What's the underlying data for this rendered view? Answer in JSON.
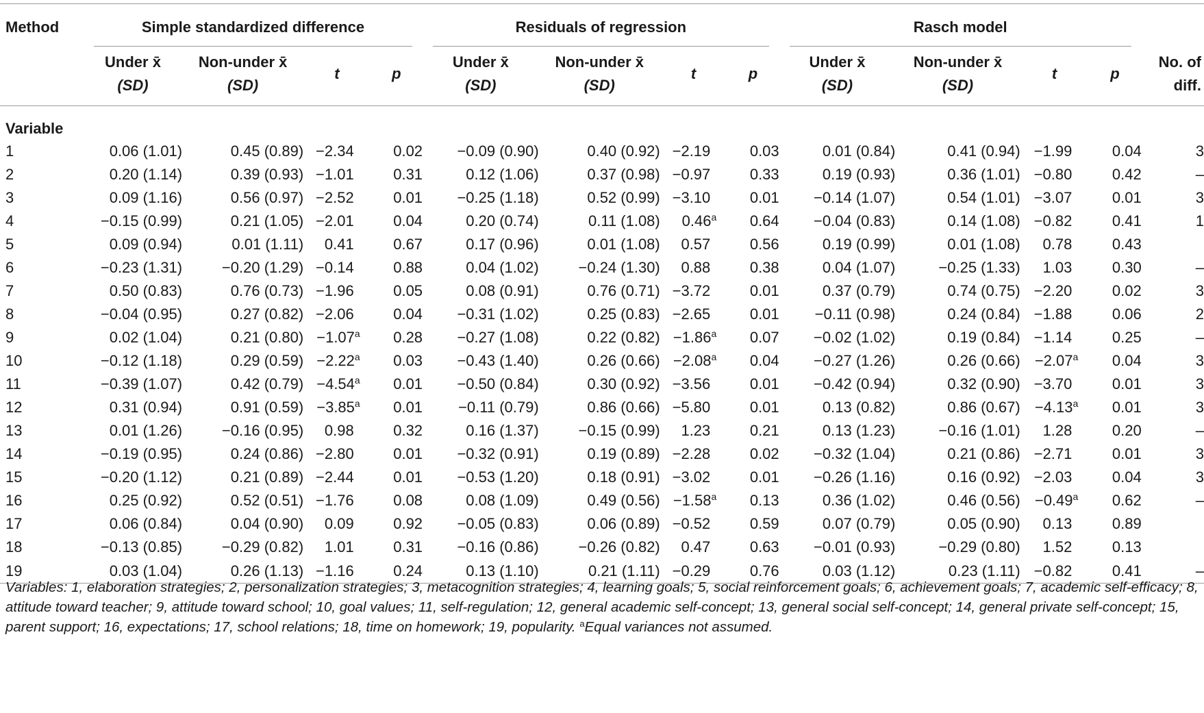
{
  "headers": {
    "method": "Method",
    "groups": [
      "Simple standardized difference",
      "Residuals of regression",
      "Rasch model"
    ],
    "under_top": "Under x̄",
    "under_sub": "(SD)",
    "nonunder_top": "Non-under x̄",
    "nonunder_sub": "(SD)",
    "t": "t",
    "p": "p",
    "ndiff_top": "No. of",
    "ndiff_sub": "diff.",
    "variable": "Variable"
  },
  "rows": [
    {
      "v": "1",
      "s_u": "0.06 (1.01)",
      "s_n": "0.45 (0.89)",
      "s_t": "−2.34",
      "s_ta": "",
      "s_p": "0.02",
      "r_u": "−0.09 (0.90)",
      "r_n": "0.40 (0.92)",
      "r_t": "−2.19",
      "r_ta": "",
      "r_p": "0.03",
      "m_u": "0.01 (0.84)",
      "m_n": "0.41 (0.94)",
      "m_t": "−1.99",
      "m_ta": "",
      "m_p": "0.04",
      "d": "3"
    },
    {
      "v": "2",
      "s_u": "0.20 (1.14)",
      "s_n": "0.39 (0.93)",
      "s_t": "−1.01",
      "s_ta": "",
      "s_p": "0.31",
      "r_u": "0.12 (1.06)",
      "r_n": "0.37 (0.98)",
      "r_t": "−0.97",
      "r_ta": "",
      "r_p": "0.33",
      "m_u": "0.19 (0.93)",
      "m_n": "0.36 (1.01)",
      "m_t": "−0.80",
      "m_ta": "",
      "m_p": "0.42",
      "d": "–"
    },
    {
      "v": "3",
      "s_u": "0.09 (1.16)",
      "s_n": "0.56 (0.97)",
      "s_t": "−2.52",
      "s_ta": "",
      "s_p": "0.01",
      "r_u": "−0.25 (1.18)",
      "r_n": "0.52 (0.99)",
      "r_t": "−3.10",
      "r_ta": "",
      "r_p": "0.01",
      "m_u": "−0.14 (1.07)",
      "m_n": "0.54 (1.01)",
      "m_t": "−3.07",
      "m_ta": "",
      "m_p": "0.01",
      "d": "3"
    },
    {
      "v": "4",
      "s_u": "−0.15 (0.99)",
      "s_n": "0.21 (1.05)",
      "s_t": "−2.01",
      "s_ta": "",
      "s_p": "0.04",
      "r_u": "0.20 (0.74)",
      "r_n": "0.11 (1.08)",
      "r_t": "0.46",
      "r_ta": "a",
      "r_p": "0.64",
      "m_u": "−0.04 (0.83)",
      "m_n": "0.14 (1.08)",
      "m_t": "−0.82",
      "m_ta": "",
      "m_p": "0.41",
      "d": "1"
    },
    {
      "v": "5",
      "s_u": "0.09 (0.94)",
      "s_n": "0.01 (1.11)",
      "s_t": "0.41",
      "s_ta": "",
      "s_p": "0.67",
      "r_u": "0.17 (0.96)",
      "r_n": "0.01 (1.08)",
      "r_t": "0.57",
      "r_ta": "",
      "r_p": "0.56",
      "m_u": "0.19 (0.99)",
      "m_n": "0.01 (1.08)",
      "m_t": "0.78",
      "m_ta": "",
      "m_p": "0.43",
      "d": ""
    },
    {
      "v": "6",
      "s_u": "−0.23 (1.31)",
      "s_n": "−0.20 (1.29)",
      "s_t": "−0.14",
      "s_ta": "",
      "s_p": "0.88",
      "r_u": "0.04 (1.02)",
      "r_n": "−0.24 (1.30)",
      "r_t": "0.88",
      "r_ta": "",
      "r_p": "0.38",
      "m_u": "0.04 (1.07)",
      "m_n": "−0.25 (1.33)",
      "m_t": "1.03",
      "m_ta": "",
      "m_p": "0.30",
      "d": "–"
    },
    {
      "v": "7",
      "s_u": "0.50 (0.83)",
      "s_n": "0.76 (0.73)",
      "s_t": "−1.96",
      "s_ta": "",
      "s_p": "0.05",
      "r_u": "0.08 (0.91)",
      "r_n": "0.76 (0.71)",
      "r_t": "−3.72",
      "r_ta": "",
      "r_p": "0.01",
      "m_u": "0.37 (0.79)",
      "m_n": "0.74 (0.75)",
      "m_t": "−2.20",
      "m_ta": "",
      "m_p": "0.02",
      "d": "3"
    },
    {
      "v": "8",
      "s_u": "−0.04 (0.95)",
      "s_n": "0.27 (0.82)",
      "s_t": "−2.06",
      "s_ta": "",
      "s_p": "0.04",
      "r_u": "−0.31 (1.02)",
      "r_n": "0.25 (0.83)",
      "r_t": "−2.65",
      "r_ta": "",
      "r_p": "0.01",
      "m_u": "−0.11 (0.98)",
      "m_n": "0.24 (0.84)",
      "m_t": "−1.88",
      "m_ta": "",
      "m_p": "0.06",
      "d": "2"
    },
    {
      "v": "9",
      "s_u": "0.02 (1.04)",
      "s_n": "0.21 (0.80)",
      "s_t": "−1.07",
      "s_ta": "a",
      "s_p": "0.28",
      "r_u": "−0.27 (1.08)",
      "r_n": "0.22 (0.82)",
      "r_t": "−1.86",
      "r_ta": "a",
      "r_p": "0.07",
      "m_u": "−0.02 (1.02)",
      "m_n": "0.19 (0.84)",
      "m_t": "−1.14",
      "m_ta": "",
      "m_p": "0.25",
      "d": "–"
    },
    {
      "v": "10",
      "s_u": "−0.12 (1.18)",
      "s_n": "0.29 (0.59)",
      "s_t": "−2.22",
      "s_ta": "a",
      "s_p": "0.03",
      "r_u": "−0.43 (1.40)",
      "r_n": "0.26 (0.66)",
      "r_t": "−2.08",
      "r_ta": "a",
      "r_p": "0.04",
      "m_u": "−0.27 (1.26)",
      "m_n": "0.26 (0.66)",
      "m_t": "−2.07",
      "m_ta": "a",
      "m_p": "0.04",
      "d": "3"
    },
    {
      "v": "11",
      "s_u": "−0.39 (1.07)",
      "s_n": "0.42 (0.79)",
      "s_t": "−4.54",
      "s_ta": "a",
      "s_p": "0.01",
      "r_u": "−0.50 (0.84)",
      "r_n": "0.30 (0.92)",
      "r_t": "−3.56",
      "r_ta": "",
      "r_p": "0.01",
      "m_u": "−0.42 (0.94)",
      "m_n": "0.32 (0.90)",
      "m_t": "−3.70",
      "m_ta": "",
      "m_p": "0.01",
      "d": "3"
    },
    {
      "v": "12",
      "s_u": "0.31 (0.94)",
      "s_n": "0.91 (0.59)",
      "s_t": "−3.85",
      "s_ta": "a",
      "s_p": "0.01",
      "r_u": "−0.11 (0.79)",
      "r_n": "0.86 (0.66)",
      "r_t": "−5.80",
      "r_ta": "",
      "r_p": "0.01",
      "m_u": "0.13 (0.82)",
      "m_n": "0.86 (0.67)",
      "m_t": "−4.13",
      "m_ta": "a",
      "m_p": "0.01",
      "d": "3"
    },
    {
      "v": "13",
      "s_u": "0.01 (1.26)",
      "s_n": "−0.16 (0.95)",
      "s_t": "0.98",
      "s_ta": "",
      "s_p": "0.32",
      "r_u": "0.16 (1.37)",
      "r_n": "−0.15 (0.99)",
      "r_t": "1.23",
      "r_ta": "",
      "r_p": "0.21",
      "m_u": "0.13 (1.23)",
      "m_n": "−0.16 (1.01)",
      "m_t": "1.28",
      "m_ta": "",
      "m_p": "0.20",
      "d": "–"
    },
    {
      "v": "14",
      "s_u": "−0.19 (0.95)",
      "s_n": "0.24 (0.86)",
      "s_t": "−2.80",
      "s_ta": "",
      "s_p": "0.01",
      "r_u": "−0.32 (0.91)",
      "r_n": "0.19 (0.89)",
      "r_t": "−2.28",
      "r_ta": "",
      "r_p": "0.02",
      "m_u": "−0.32 (1.04)",
      "m_n": "0.21 (0.86)",
      "m_t": "−2.71",
      "m_ta": "",
      "m_p": "0.01",
      "d": "3"
    },
    {
      "v": "15",
      "s_u": "−0.20 (1.12)",
      "s_n": "0.21 (0.89)",
      "s_t": "−2.44",
      "s_ta": "",
      "s_p": "0.01",
      "r_u": "−0.53 (1.20)",
      "r_n": "0.18 (0.91)",
      "r_t": "−3.02",
      "r_ta": "",
      "r_p": "0.01",
      "m_u": "−0.26 (1.16)",
      "m_n": "0.16 (0.92)",
      "m_t": "−2.03",
      "m_ta": "",
      "m_p": "0.04",
      "d": "3"
    },
    {
      "v": "16",
      "s_u": "0.25 (0.92)",
      "s_n": "0.52 (0.51)",
      "s_t": "−1.76",
      "s_ta": "",
      "s_p": "0.08",
      "r_u": "0.08 (1.09)",
      "r_n": "0.49 (0.56)",
      "r_t": "−1.58",
      "r_ta": "a",
      "r_p": "0.13",
      "m_u": "0.36 (1.02)",
      "m_n": "0.46 (0.56)",
      "m_t": "−0.49",
      "m_ta": "a",
      "m_p": "0.62",
      "d": "–"
    },
    {
      "v": "17",
      "s_u": "0.06 (0.84)",
      "s_n": "0.04 (0.90)",
      "s_t": "0.09",
      "s_ta": "",
      "s_p": "0.92",
      "r_u": "−0.05 (0.83)",
      "r_n": "0.06 (0.89)",
      "r_t": "−0.52",
      "r_ta": "",
      "r_p": "0.59",
      "m_u": "0.07 (0.79)",
      "m_n": "0.05 (0.90)",
      "m_t": "0.13",
      "m_ta": "",
      "m_p": "0.89",
      "d": ""
    },
    {
      "v": "18",
      "s_u": "−0.13 (0.85)",
      "s_n": "−0.29 (0.82)",
      "s_t": "1.01",
      "s_ta": "",
      "s_p": "0.31",
      "r_u": "−0.16 (0.86)",
      "r_n": "−0.26 (0.82)",
      "r_t": "0.47",
      "r_ta": "",
      "r_p": "0.63",
      "m_u": "−0.01 (0.93)",
      "m_n": "−0.29 (0.80)",
      "m_t": "1.52",
      "m_ta": "",
      "m_p": "0.13",
      "d": ""
    },
    {
      "v": "19",
      "s_u": "0.03 (1.04)",
      "s_n": "0.26 (1.13)",
      "s_t": "−1.16",
      "s_ta": "",
      "s_p": "0.24",
      "r_u": "0.13 (1.10)",
      "r_n": "0.21 (1.11)",
      "r_t": "−0.29",
      "r_ta": "",
      "r_p": "0.76",
      "m_u": "0.03 (1.12)",
      "m_n": "0.23 (1.11)",
      "m_t": "−0.82",
      "m_ta": "",
      "m_p": "0.41",
      "d": "–"
    }
  ],
  "footnote": {
    "text": "Variables: 1, elaboration strategies; 2, personalization strategies; 3, metacognition strategies; 4, learning goals; 5, social reinforcement goals; 6, achievement goals; 7, academic self-efficacy; 8, attitude toward teacher; 9, attitude toward school; 10, goal values; 11, self-regulation; 12, general academic self-concept; 13, general social self-concept; 14, general private self-concept; 15, parent support; 16, expectations; 17, school relations; 18, time on homework; 19, popularity. ",
    "marker": "a",
    "note": "Equal variances not assumed."
  }
}
